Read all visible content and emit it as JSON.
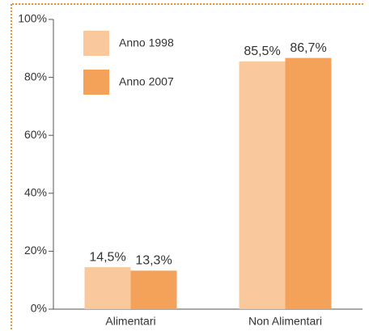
{
  "chart_data": {
    "type": "bar",
    "categories": [
      "Alimentari",
      "Non Alimentari"
    ],
    "series": [
      {
        "name": "Anno 1998",
        "color": "#f9c99d",
        "values": [
          14.5,
          85.5
        ],
        "value_labels": [
          "14,5%",
          "85,5%"
        ]
      },
      {
        "name": "Anno 2007",
        "color": "#f4a259",
        "values": [
          13.3,
          86.7
        ],
        "value_labels": [
          "13,3%",
          "86,7%"
        ]
      }
    ],
    "ylim": [
      0,
      100
    ],
    "yticks": [
      {
        "value": 0,
        "label": "0%"
      },
      {
        "value": 20,
        "label": "20%"
      },
      {
        "value": 40,
        "label": "40%"
      },
      {
        "value": 60,
        "label": "60%"
      },
      {
        "value": 80,
        "label": "80%"
      },
      {
        "value": 100,
        "label": "100%"
      }
    ],
    "legend": "upper left"
  }
}
